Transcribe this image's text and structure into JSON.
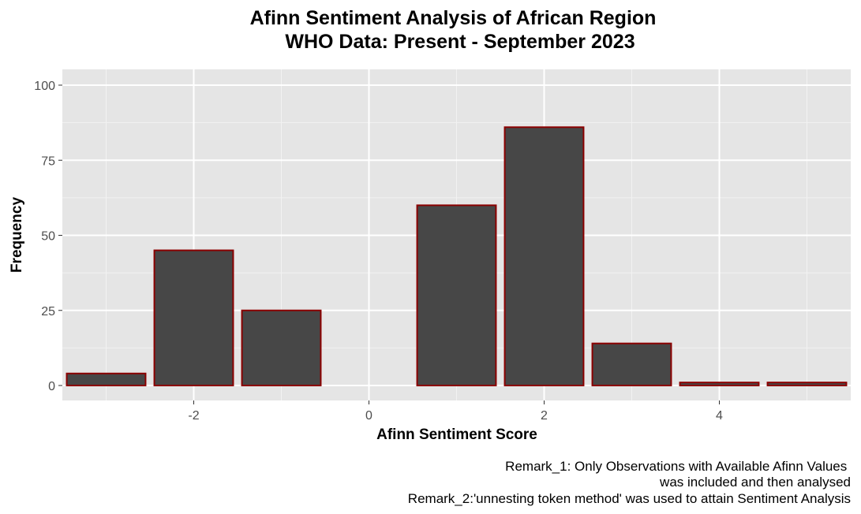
{
  "chart_data": {
    "type": "bar",
    "title_lines": [
      "Afinn Sentiment Analysis of African Region",
      "WHO Data: Present - September 2023"
    ],
    "xlabel": "Afinn Sentiment Score",
    "ylabel": "Frequency",
    "x": [
      -3,
      -2,
      -1,
      1,
      2,
      3,
      4,
      5
    ],
    "values": [
      4,
      45,
      25,
      60,
      86,
      14,
      1,
      1
    ],
    "xlim": [
      -3.5,
      5.5
    ],
    "ylim": [
      0,
      100
    ],
    "x_ticks": [
      -2,
      0,
      2,
      4
    ],
    "x_tick_labels": [
      "-2",
      "0",
      "2",
      "4"
    ],
    "y_ticks": [
      0,
      25,
      50,
      75,
      100
    ],
    "y_tick_labels": [
      "0",
      "25",
      "50",
      "75",
      "100"
    ],
    "grid": true,
    "bar_fill": "#474747",
    "bar_outline": "#8b0000",
    "panel_background": "#e5e5e5",
    "caption_lines": [
      "Remark_1: Only Observations with Available Afinn Values ",
      "was included and then analysed",
      "Remark_2:'unnesting token method' was used to attain Sentiment Analysis"
    ]
  }
}
